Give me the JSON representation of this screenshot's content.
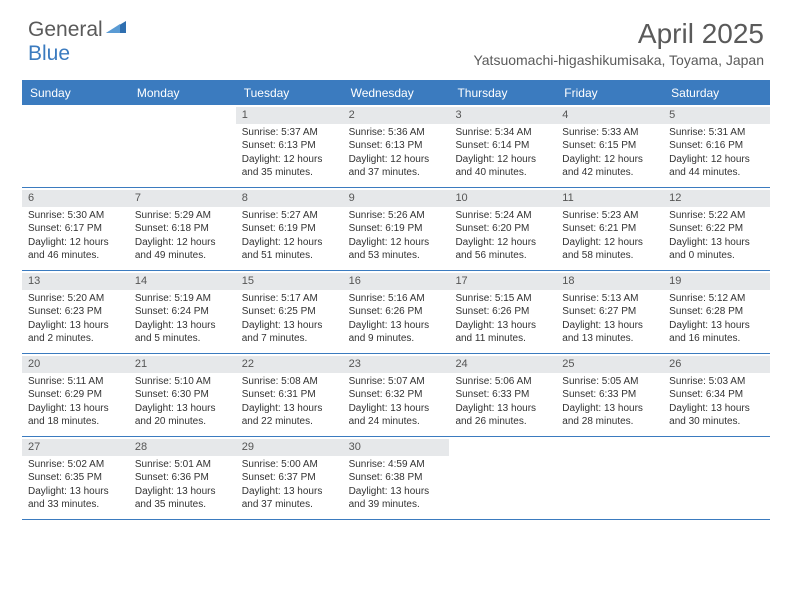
{
  "logo": {
    "general": "General",
    "blue": "Blue"
  },
  "title": "April 2025",
  "location": "Yatsuomachi-higashikumisaka, Toyama, Japan",
  "colors": {
    "accent": "#3b7bbf",
    "daybar": "#e6e8ea",
    "text": "#333333",
    "header_text": "#5a5a5a",
    "bg": "#ffffff"
  },
  "weekdays": [
    "Sunday",
    "Monday",
    "Tuesday",
    "Wednesday",
    "Thursday",
    "Friday",
    "Saturday"
  ],
  "weeks": [
    [
      null,
      null,
      {
        "n": "1",
        "sr": "Sunrise: 5:37 AM",
        "ss": "Sunset: 6:13 PM",
        "d1": "Daylight: 12 hours",
        "d2": "and 35 minutes."
      },
      {
        "n": "2",
        "sr": "Sunrise: 5:36 AM",
        "ss": "Sunset: 6:13 PM",
        "d1": "Daylight: 12 hours",
        "d2": "and 37 minutes."
      },
      {
        "n": "3",
        "sr": "Sunrise: 5:34 AM",
        "ss": "Sunset: 6:14 PM",
        "d1": "Daylight: 12 hours",
        "d2": "and 40 minutes."
      },
      {
        "n": "4",
        "sr": "Sunrise: 5:33 AM",
        "ss": "Sunset: 6:15 PM",
        "d1": "Daylight: 12 hours",
        "d2": "and 42 minutes."
      },
      {
        "n": "5",
        "sr": "Sunrise: 5:31 AM",
        "ss": "Sunset: 6:16 PM",
        "d1": "Daylight: 12 hours",
        "d2": "and 44 minutes."
      }
    ],
    [
      {
        "n": "6",
        "sr": "Sunrise: 5:30 AM",
        "ss": "Sunset: 6:17 PM",
        "d1": "Daylight: 12 hours",
        "d2": "and 46 minutes."
      },
      {
        "n": "7",
        "sr": "Sunrise: 5:29 AM",
        "ss": "Sunset: 6:18 PM",
        "d1": "Daylight: 12 hours",
        "d2": "and 49 minutes."
      },
      {
        "n": "8",
        "sr": "Sunrise: 5:27 AM",
        "ss": "Sunset: 6:19 PM",
        "d1": "Daylight: 12 hours",
        "d2": "and 51 minutes."
      },
      {
        "n": "9",
        "sr": "Sunrise: 5:26 AM",
        "ss": "Sunset: 6:19 PM",
        "d1": "Daylight: 12 hours",
        "d2": "and 53 minutes."
      },
      {
        "n": "10",
        "sr": "Sunrise: 5:24 AM",
        "ss": "Sunset: 6:20 PM",
        "d1": "Daylight: 12 hours",
        "d2": "and 56 minutes."
      },
      {
        "n": "11",
        "sr": "Sunrise: 5:23 AM",
        "ss": "Sunset: 6:21 PM",
        "d1": "Daylight: 12 hours",
        "d2": "and 58 minutes."
      },
      {
        "n": "12",
        "sr": "Sunrise: 5:22 AM",
        "ss": "Sunset: 6:22 PM",
        "d1": "Daylight: 13 hours",
        "d2": "and 0 minutes."
      }
    ],
    [
      {
        "n": "13",
        "sr": "Sunrise: 5:20 AM",
        "ss": "Sunset: 6:23 PM",
        "d1": "Daylight: 13 hours",
        "d2": "and 2 minutes."
      },
      {
        "n": "14",
        "sr": "Sunrise: 5:19 AM",
        "ss": "Sunset: 6:24 PM",
        "d1": "Daylight: 13 hours",
        "d2": "and 5 minutes."
      },
      {
        "n": "15",
        "sr": "Sunrise: 5:17 AM",
        "ss": "Sunset: 6:25 PM",
        "d1": "Daylight: 13 hours",
        "d2": "and 7 minutes."
      },
      {
        "n": "16",
        "sr": "Sunrise: 5:16 AM",
        "ss": "Sunset: 6:26 PM",
        "d1": "Daylight: 13 hours",
        "d2": "and 9 minutes."
      },
      {
        "n": "17",
        "sr": "Sunrise: 5:15 AM",
        "ss": "Sunset: 6:26 PM",
        "d1": "Daylight: 13 hours",
        "d2": "and 11 minutes."
      },
      {
        "n": "18",
        "sr": "Sunrise: 5:13 AM",
        "ss": "Sunset: 6:27 PM",
        "d1": "Daylight: 13 hours",
        "d2": "and 13 minutes."
      },
      {
        "n": "19",
        "sr": "Sunrise: 5:12 AM",
        "ss": "Sunset: 6:28 PM",
        "d1": "Daylight: 13 hours",
        "d2": "and 16 minutes."
      }
    ],
    [
      {
        "n": "20",
        "sr": "Sunrise: 5:11 AM",
        "ss": "Sunset: 6:29 PM",
        "d1": "Daylight: 13 hours",
        "d2": "and 18 minutes."
      },
      {
        "n": "21",
        "sr": "Sunrise: 5:10 AM",
        "ss": "Sunset: 6:30 PM",
        "d1": "Daylight: 13 hours",
        "d2": "and 20 minutes."
      },
      {
        "n": "22",
        "sr": "Sunrise: 5:08 AM",
        "ss": "Sunset: 6:31 PM",
        "d1": "Daylight: 13 hours",
        "d2": "and 22 minutes."
      },
      {
        "n": "23",
        "sr": "Sunrise: 5:07 AM",
        "ss": "Sunset: 6:32 PM",
        "d1": "Daylight: 13 hours",
        "d2": "and 24 minutes."
      },
      {
        "n": "24",
        "sr": "Sunrise: 5:06 AM",
        "ss": "Sunset: 6:33 PM",
        "d1": "Daylight: 13 hours",
        "d2": "and 26 minutes."
      },
      {
        "n": "25",
        "sr": "Sunrise: 5:05 AM",
        "ss": "Sunset: 6:33 PM",
        "d1": "Daylight: 13 hours",
        "d2": "and 28 minutes."
      },
      {
        "n": "26",
        "sr": "Sunrise: 5:03 AM",
        "ss": "Sunset: 6:34 PM",
        "d1": "Daylight: 13 hours",
        "d2": "and 30 minutes."
      }
    ],
    [
      {
        "n": "27",
        "sr": "Sunrise: 5:02 AM",
        "ss": "Sunset: 6:35 PM",
        "d1": "Daylight: 13 hours",
        "d2": "and 33 minutes."
      },
      {
        "n": "28",
        "sr": "Sunrise: 5:01 AM",
        "ss": "Sunset: 6:36 PM",
        "d1": "Daylight: 13 hours",
        "d2": "and 35 minutes."
      },
      {
        "n": "29",
        "sr": "Sunrise: 5:00 AM",
        "ss": "Sunset: 6:37 PM",
        "d1": "Daylight: 13 hours",
        "d2": "and 37 minutes."
      },
      {
        "n": "30",
        "sr": "Sunrise: 4:59 AM",
        "ss": "Sunset: 6:38 PM",
        "d1": "Daylight: 13 hours",
        "d2": "and 39 minutes."
      },
      null,
      null,
      null
    ]
  ]
}
